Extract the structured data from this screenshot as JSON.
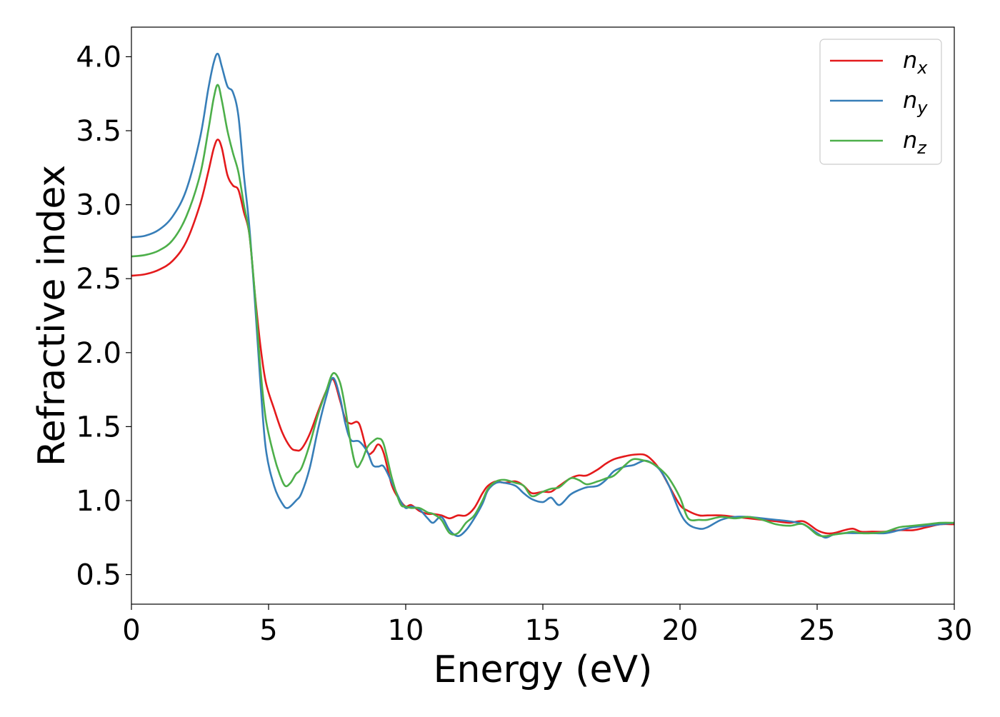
{
  "chart_data": {
    "type": "line",
    "title": "",
    "xlabel": "Energy (eV)",
    "ylabel": "Refractive index",
    "xlim": [
      0,
      30
    ],
    "ylim": [
      0.3,
      4.2
    ],
    "xticks": [
      0,
      5,
      10,
      15,
      20,
      25,
      30
    ],
    "xtick_labels": [
      "0",
      "5",
      "10",
      "15",
      "20",
      "25",
      "30"
    ],
    "yticks": [
      0.5,
      1.0,
      1.5,
      2.0,
      2.5,
      3.0,
      3.5,
      4.0
    ],
    "ytick_labels": [
      "0.5",
      "1.0",
      "1.5",
      "2.0",
      "2.5",
      "3.0",
      "3.5",
      "4.0"
    ],
    "grid": false,
    "legend_position": "top-right",
    "series": [
      {
        "name": "n_x",
        "label_base": "n",
        "label_sub": "x",
        "color": "#e41a1c",
        "x": [
          0,
          0.5,
          1.0,
          1.5,
          2.0,
          2.5,
          2.8,
          3.0,
          3.15,
          3.3,
          3.5,
          3.7,
          3.9,
          4.1,
          4.3,
          4.5,
          4.7,
          4.9,
          5.2,
          5.5,
          5.8,
          6.0,
          6.2,
          6.5,
          6.8,
          7.1,
          7.35,
          7.6,
          7.8,
          8.0,
          8.3,
          8.6,
          8.8,
          9.0,
          9.2,
          9.5,
          9.8,
          10.0,
          10.2,
          10.5,
          10.8,
          11.0,
          11.3,
          11.6,
          11.9,
          12.2,
          12.5,
          12.8,
          13.0,
          13.3,
          13.6,
          14.0,
          14.3,
          14.6,
          15.0,
          15.3,
          15.6,
          16.0,
          16.3,
          16.6,
          17.0,
          17.3,
          17.6,
          18.0,
          18.3,
          18.7,
          19.0,
          19.3,
          19.6,
          20.0,
          20.3,
          20.7,
          21.0,
          21.5,
          22.0,
          22.5,
          23.0,
          23.5,
          24.0,
          24.5,
          25.0,
          25.3,
          25.6,
          26.0,
          26.3,
          26.6,
          27.0,
          27.5,
          28.0,
          28.5,
          29.0,
          29.5,
          30.0
        ],
        "values": [
          2.52,
          2.53,
          2.56,
          2.62,
          2.75,
          3.0,
          3.22,
          3.38,
          3.44,
          3.38,
          3.2,
          3.13,
          3.1,
          2.95,
          2.8,
          2.4,
          2.05,
          1.8,
          1.62,
          1.46,
          1.36,
          1.34,
          1.35,
          1.45,
          1.6,
          1.74,
          1.82,
          1.68,
          1.55,
          1.52,
          1.52,
          1.33,
          1.33,
          1.38,
          1.32,
          1.1,
          1.0,
          0.96,
          0.97,
          0.93,
          0.91,
          0.91,
          0.9,
          0.88,
          0.9,
          0.9,
          0.95,
          1.05,
          1.1,
          1.13,
          1.12,
          1.13,
          1.1,
          1.05,
          1.06,
          1.06,
          1.1,
          1.15,
          1.17,
          1.17,
          1.21,
          1.25,
          1.28,
          1.3,
          1.31,
          1.31,
          1.27,
          1.2,
          1.1,
          0.97,
          0.93,
          0.9,
          0.9,
          0.9,
          0.89,
          0.88,
          0.87,
          0.86,
          0.85,
          0.86,
          0.8,
          0.78,
          0.78,
          0.8,
          0.81,
          0.79,
          0.79,
          0.79,
          0.8,
          0.8,
          0.82,
          0.84,
          0.84
        ]
      },
      {
        "name": "n_y",
        "label_base": "n",
        "label_sub": "y",
        "color": "#377eb8",
        "x": [
          0,
          0.5,
          1.0,
          1.5,
          2.0,
          2.5,
          2.8,
          3.0,
          3.15,
          3.3,
          3.5,
          3.7,
          3.9,
          4.1,
          4.3,
          4.5,
          4.7,
          4.9,
          5.2,
          5.5,
          5.7,
          6.0,
          6.2,
          6.5,
          6.8,
          7.1,
          7.35,
          7.6,
          7.8,
          8.0,
          8.3,
          8.6,
          8.8,
          9.0,
          9.2,
          9.5,
          9.8,
          10.0,
          10.2,
          10.5,
          10.8,
          11.0,
          11.3,
          11.6,
          11.9,
          12.2,
          12.5,
          12.8,
          13.0,
          13.3,
          13.6,
          14.0,
          14.3,
          14.6,
          15.0,
          15.3,
          15.6,
          16.0,
          16.3,
          16.6,
          17.0,
          17.3,
          17.6,
          18.0,
          18.3,
          18.7,
          19.0,
          19.3,
          19.6,
          20.0,
          20.3,
          20.7,
          21.0,
          21.5,
          22.0,
          22.5,
          23.0,
          23.5,
          24.0,
          24.5,
          25.0,
          25.3,
          25.6,
          26.0,
          26.3,
          26.6,
          27.0,
          27.5,
          28.0,
          28.5,
          29.0,
          29.5,
          30.0
        ],
        "values": [
          2.78,
          2.79,
          2.83,
          2.92,
          3.1,
          3.45,
          3.78,
          3.96,
          4.02,
          3.93,
          3.8,
          3.76,
          3.6,
          3.2,
          2.85,
          2.35,
          1.8,
          1.35,
          1.1,
          0.98,
          0.95,
          1.0,
          1.05,
          1.22,
          1.48,
          1.7,
          1.83,
          1.7,
          1.52,
          1.41,
          1.4,
          1.33,
          1.24,
          1.23,
          1.23,
          1.12,
          1.0,
          0.95,
          0.96,
          0.94,
          0.88,
          0.85,
          0.89,
          0.8,
          0.76,
          0.8,
          0.88,
          0.98,
          1.07,
          1.12,
          1.12,
          1.1,
          1.05,
          1.01,
          0.99,
          1.02,
          0.97,
          1.04,
          1.07,
          1.09,
          1.1,
          1.14,
          1.2,
          1.23,
          1.24,
          1.27,
          1.25,
          1.2,
          1.1,
          0.92,
          0.84,
          0.81,
          0.82,
          0.87,
          0.89,
          0.89,
          0.88,
          0.87,
          0.86,
          0.84,
          0.78,
          0.75,
          0.77,
          0.78,
          0.78,
          0.78,
          0.78,
          0.78,
          0.8,
          0.82,
          0.83,
          0.84,
          0.85
        ]
      },
      {
        "name": "n_z",
        "label_base": "n",
        "label_sub": "z",
        "color": "#4daf4a",
        "x": [
          0,
          0.5,
          1.0,
          1.5,
          2.0,
          2.5,
          2.8,
          3.0,
          3.15,
          3.3,
          3.5,
          3.7,
          3.9,
          4.1,
          4.3,
          4.5,
          4.7,
          4.9,
          5.2,
          5.4,
          5.6,
          5.8,
          6.0,
          6.2,
          6.5,
          6.8,
          7.1,
          7.35,
          7.6,
          7.8,
          8.0,
          8.2,
          8.4,
          8.6,
          8.8,
          9.0,
          9.2,
          9.5,
          9.8,
          10.0,
          10.2,
          10.5,
          10.8,
          11.0,
          11.3,
          11.6,
          11.9,
          12.2,
          12.5,
          12.8,
          13.0,
          13.3,
          13.6,
          14.0,
          14.3,
          14.6,
          15.0,
          15.3,
          15.6,
          16.0,
          16.3,
          16.6,
          17.0,
          17.3,
          17.6,
          18.0,
          18.3,
          18.7,
          19.0,
          19.3,
          19.6,
          20.0,
          20.3,
          20.7,
          21.0,
          21.5,
          22.0,
          22.5,
          23.0,
          23.5,
          24.0,
          24.5,
          25.0,
          25.3,
          25.6,
          26.0,
          26.3,
          26.6,
          27.0,
          27.5,
          28.0,
          28.5,
          29.0,
          29.5,
          30.0
        ],
        "values": [
          2.65,
          2.66,
          2.69,
          2.76,
          2.92,
          3.2,
          3.5,
          3.72,
          3.81,
          3.7,
          3.5,
          3.35,
          3.22,
          3.0,
          2.8,
          2.4,
          1.9,
          1.55,
          1.3,
          1.18,
          1.1,
          1.12,
          1.18,
          1.22,
          1.38,
          1.58,
          1.74,
          1.86,
          1.8,
          1.62,
          1.38,
          1.23,
          1.27,
          1.36,
          1.4,
          1.42,
          1.38,
          1.15,
          0.98,
          0.96,
          0.95,
          0.95,
          0.92,
          0.91,
          0.87,
          0.78,
          0.78,
          0.85,
          0.9,
          1.0,
          1.08,
          1.13,
          1.14,
          1.12,
          1.1,
          1.03,
          1.06,
          1.08,
          1.09,
          1.15,
          1.14,
          1.11,
          1.13,
          1.15,
          1.17,
          1.24,
          1.28,
          1.27,
          1.25,
          1.21,
          1.15,
          1.02,
          0.88,
          0.87,
          0.87,
          0.89,
          0.88,
          0.89,
          0.87,
          0.84,
          0.83,
          0.84,
          0.77,
          0.76,
          0.77,
          0.78,
          0.79,
          0.78,
          0.78,
          0.79,
          0.82,
          0.83,
          0.84,
          0.85,
          0.85
        ]
      }
    ]
  }
}
